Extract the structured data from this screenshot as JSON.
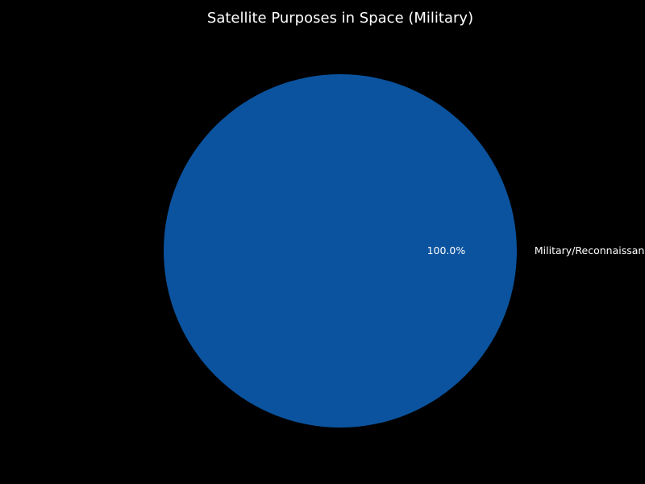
{
  "chart_data": {
    "type": "pie",
    "title": "Satellite Purposes in Space (Military)",
    "categories": [
      "Military/Reconnaissance"
    ],
    "values": [
      100.0
    ],
    "percent_labels": [
      "100.0%"
    ],
    "colors": [
      "#0b539e"
    ],
    "background": "#000000",
    "text_color": "#ffffff"
  }
}
